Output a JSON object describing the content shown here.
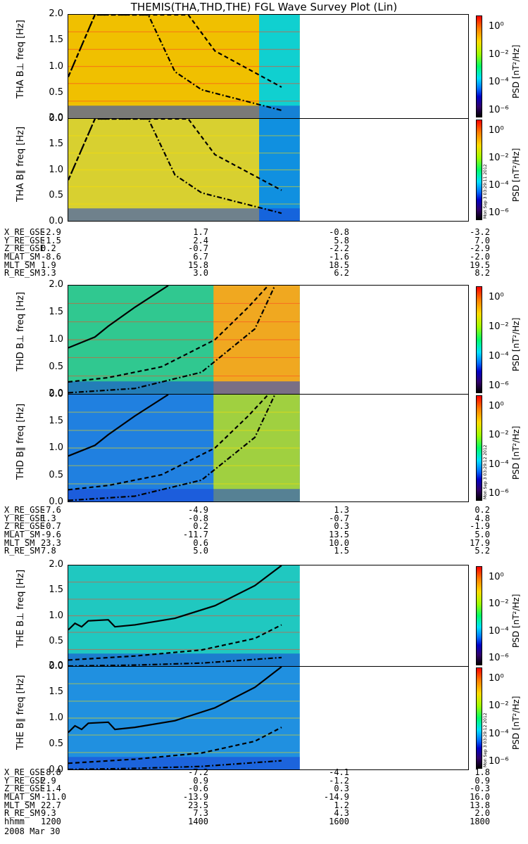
{
  "title": "THEMIS(THA,THD,THE) FGL Wave Survey Plot (Lin)",
  "colors": {
    "line": "#000000"
  },
  "colorbar": {
    "title": "PSD [nT²/Hz]",
    "labels": [
      "10⁰",
      "10⁻²",
      "10⁻⁴",
      "10⁻⁶"
    ]
  },
  "stamps": [
    "Mon Sep 3 03:29:11 2012",
    "Mon Sep 3 03:29:12 2012",
    "Mon Sep 3 03:29:12 2012"
  ],
  "panels": [
    {
      "id": "tha-perp",
      "ylabel": "THA B⊥ freq [Hz]",
      "probe": "THA",
      "component": "B⊥",
      "bg": "#f0c000",
      "gap_color": "#10d0d0"
    },
    {
      "id": "tha-par",
      "ylabel": "THA B∥ freq [Hz]",
      "probe": "THA",
      "component": "B∥",
      "bg": "#d8d030",
      "gap_color": "#1090e0"
    },
    {
      "id": "thd-perp",
      "ylabel": "THD B⊥ freq [Hz]",
      "probe": "THD",
      "component": "B⊥",
      "bg": "#30c890",
      "gap_color": "#f0a820"
    },
    {
      "id": "thd-par",
      "ylabel": "THD B∥ freq [Hz]",
      "probe": "THD",
      "component": "B∥",
      "bg": "#2080e0",
      "gap_color": "#a0d040"
    },
    {
      "id": "the-perp",
      "ylabel": "THE B⊥ freq [Hz]",
      "probe": "THE",
      "component": "B⊥",
      "bg": "#20c8c0",
      "gap_color": "#20c8c0"
    },
    {
      "id": "the-par",
      "ylabel": "THE B∥ freq [Hz]",
      "probe": "THE",
      "component": "B∥",
      "bg": "#2090e0",
      "gap_color": "#2090e0"
    }
  ],
  "yticks": [
    "2.0",
    "1.5",
    "1.0",
    "0.5",
    "0.0"
  ],
  "ephemeris": [
    {
      "rows": [
        {
          "label": "X_RE_GSE",
          "values": [
            "-2.9",
            "1.7",
            "-0.8",
            "-3.2"
          ]
        },
        {
          "label": "Y_RE_GSE",
          "values": [
            "-1.5",
            "2.4",
            "5.8",
            "7.0"
          ]
        },
        {
          "label": "Z_RE_GSE",
          "values": [
            "0.2",
            "-0.7",
            "-2.2",
            "-2.9"
          ]
        },
        {
          "label": "MLAT_SM",
          "values": [
            "-8.6",
            "6.7",
            "-1.6",
            "-2.0"
          ]
        },
        {
          "label": "MLT_SM",
          "values": [
            "1.9",
            "15.8",
            "18.5",
            "19.5"
          ]
        },
        {
          "label": "R_RE_SM",
          "values": [
            "3.3",
            "3.0",
            "6.2",
            "8.2"
          ]
        }
      ]
    },
    {
      "rows": [
        {
          "label": "X_RE_GSE",
          "values": [
            "-7.6",
            "-4.9",
            "1.3",
            "0.2"
          ]
        },
        {
          "label": "Y_RE_GSE",
          "values": [
            "1.3",
            "-0.8",
            "-0.7",
            "4.8"
          ]
        },
        {
          "label": "Z_RE_GSE",
          "values": [
            "-0.7",
            "0.2",
            "0.3",
            "-1.9"
          ]
        },
        {
          "label": "MLAT_SM",
          "values": [
            "-9.6",
            "-11.7",
            "13.5",
            "5.0"
          ]
        },
        {
          "label": "MLT_SM",
          "values": [
            "23.3",
            "0.6",
            "10.0",
            "17.9"
          ]
        },
        {
          "label": "R_RE_SM",
          "values": [
            "7.8",
            "5.0",
            "1.5",
            "5.2"
          ]
        }
      ]
    },
    {
      "rows": [
        {
          "label": "X_RE_GSE",
          "values": [
            "-8.8",
            "-7.2",
            "-4.1",
            "1.8"
          ]
        },
        {
          "label": "Y_RE_GSE",
          "values": [
            "2.9",
            "0.9",
            "-1.2",
            "0.9"
          ]
        },
        {
          "label": "Z_RE_GSE",
          "values": [
            "-1.4",
            "-0.6",
            "0.3",
            "-0.3"
          ]
        },
        {
          "label": "MLAT_SM",
          "values": [
            "-11.0",
            "-13.9",
            "-14.9",
            "16.0"
          ]
        },
        {
          "label": "MLT_SM",
          "values": [
            "22.7",
            "23.5",
            "1.2",
            "13.8"
          ]
        },
        {
          "label": "R_RE_SM",
          "values": [
            "9.3",
            "7.3",
            "4.3",
            "2.0"
          ]
        },
        {
          "label": "hhmm",
          "values": [
            "1200",
            "1400",
            "1600",
            "1800"
          ]
        }
      ]
    }
  ],
  "date": "2008 Mar 30",
  "chart_data": {
    "type": "heatmap",
    "title": "THEMIS(THA,THD,THE) FGL Wave Survey Plot (Lin)",
    "xlabel": "hhmm",
    "x_ticks": [
      "1200",
      "1400",
      "1600",
      "1800"
    ],
    "xlim": [
      1200,
      1800
    ],
    "ylim": [
      0.0,
      2.0
    ],
    "ylabel_units": "freq [Hz]",
    "colorbar_label": "PSD [nT²/Hz]",
    "colorbar_ticks": [
      "10⁰",
      "10⁻²",
      "10⁻⁴",
      "10⁻⁶"
    ],
    "data_end_time": 1520,
    "curves": {
      "tha": {
        "solid": [],
        "dashdot": [
          [
            1200,
            0.8
          ],
          [
            1240,
            2.0
          ],
          [
            1320,
            2.0
          ],
          [
            1360,
            0.9
          ],
          [
            1400,
            0.55
          ],
          [
            1460,
            0.35
          ],
          [
            1520,
            0.15
          ]
        ],
        "dashed": [
          [
            1200,
            0.8
          ],
          [
            1240,
            2.0
          ],
          [
            1380,
            2.0
          ],
          [
            1420,
            1.3
          ],
          [
            1520,
            0.6
          ]
        ]
      },
      "thd": {
        "solid": [
          [
            1200,
            0.85
          ],
          [
            1240,
            1.05
          ],
          [
            1260,
            1.25
          ],
          [
            1300,
            1.6
          ],
          [
            1350,
            2.0
          ]
        ],
        "dashed": [
          [
            1200,
            0.22
          ],
          [
            1260,
            0.3
          ],
          [
            1340,
            0.5
          ],
          [
            1420,
            1.0
          ],
          [
            1470,
            1.6
          ],
          [
            1500,
            2.0
          ]
        ],
        "dashdot": [
          [
            1200,
            0.02
          ],
          [
            1300,
            0.1
          ],
          [
            1400,
            0.4
          ],
          [
            1480,
            1.2
          ],
          [
            1510,
            2.0
          ]
        ]
      },
      "the": {
        "solid": [
          [
            1200,
            0.72
          ],
          [
            1210,
            0.85
          ],
          [
            1220,
            0.78
          ],
          [
            1230,
            0.9
          ],
          [
            1260,
            0.92
          ],
          [
            1270,
            0.78
          ],
          [
            1300,
            0.82
          ],
          [
            1360,
            0.95
          ],
          [
            1420,
            1.2
          ],
          [
            1480,
            1.6
          ],
          [
            1520,
            2.0
          ]
        ],
        "dashed": [
          [
            1200,
            0.12
          ],
          [
            1300,
            0.2
          ],
          [
            1400,
            0.32
          ],
          [
            1480,
            0.55
          ],
          [
            1520,
            0.82
          ]
        ],
        "dashdot": [
          [
            1200,
            0.0
          ],
          [
            1300,
            0.02
          ],
          [
            1400,
            0.06
          ],
          [
            1520,
            0.17
          ]
        ]
      }
    }
  }
}
